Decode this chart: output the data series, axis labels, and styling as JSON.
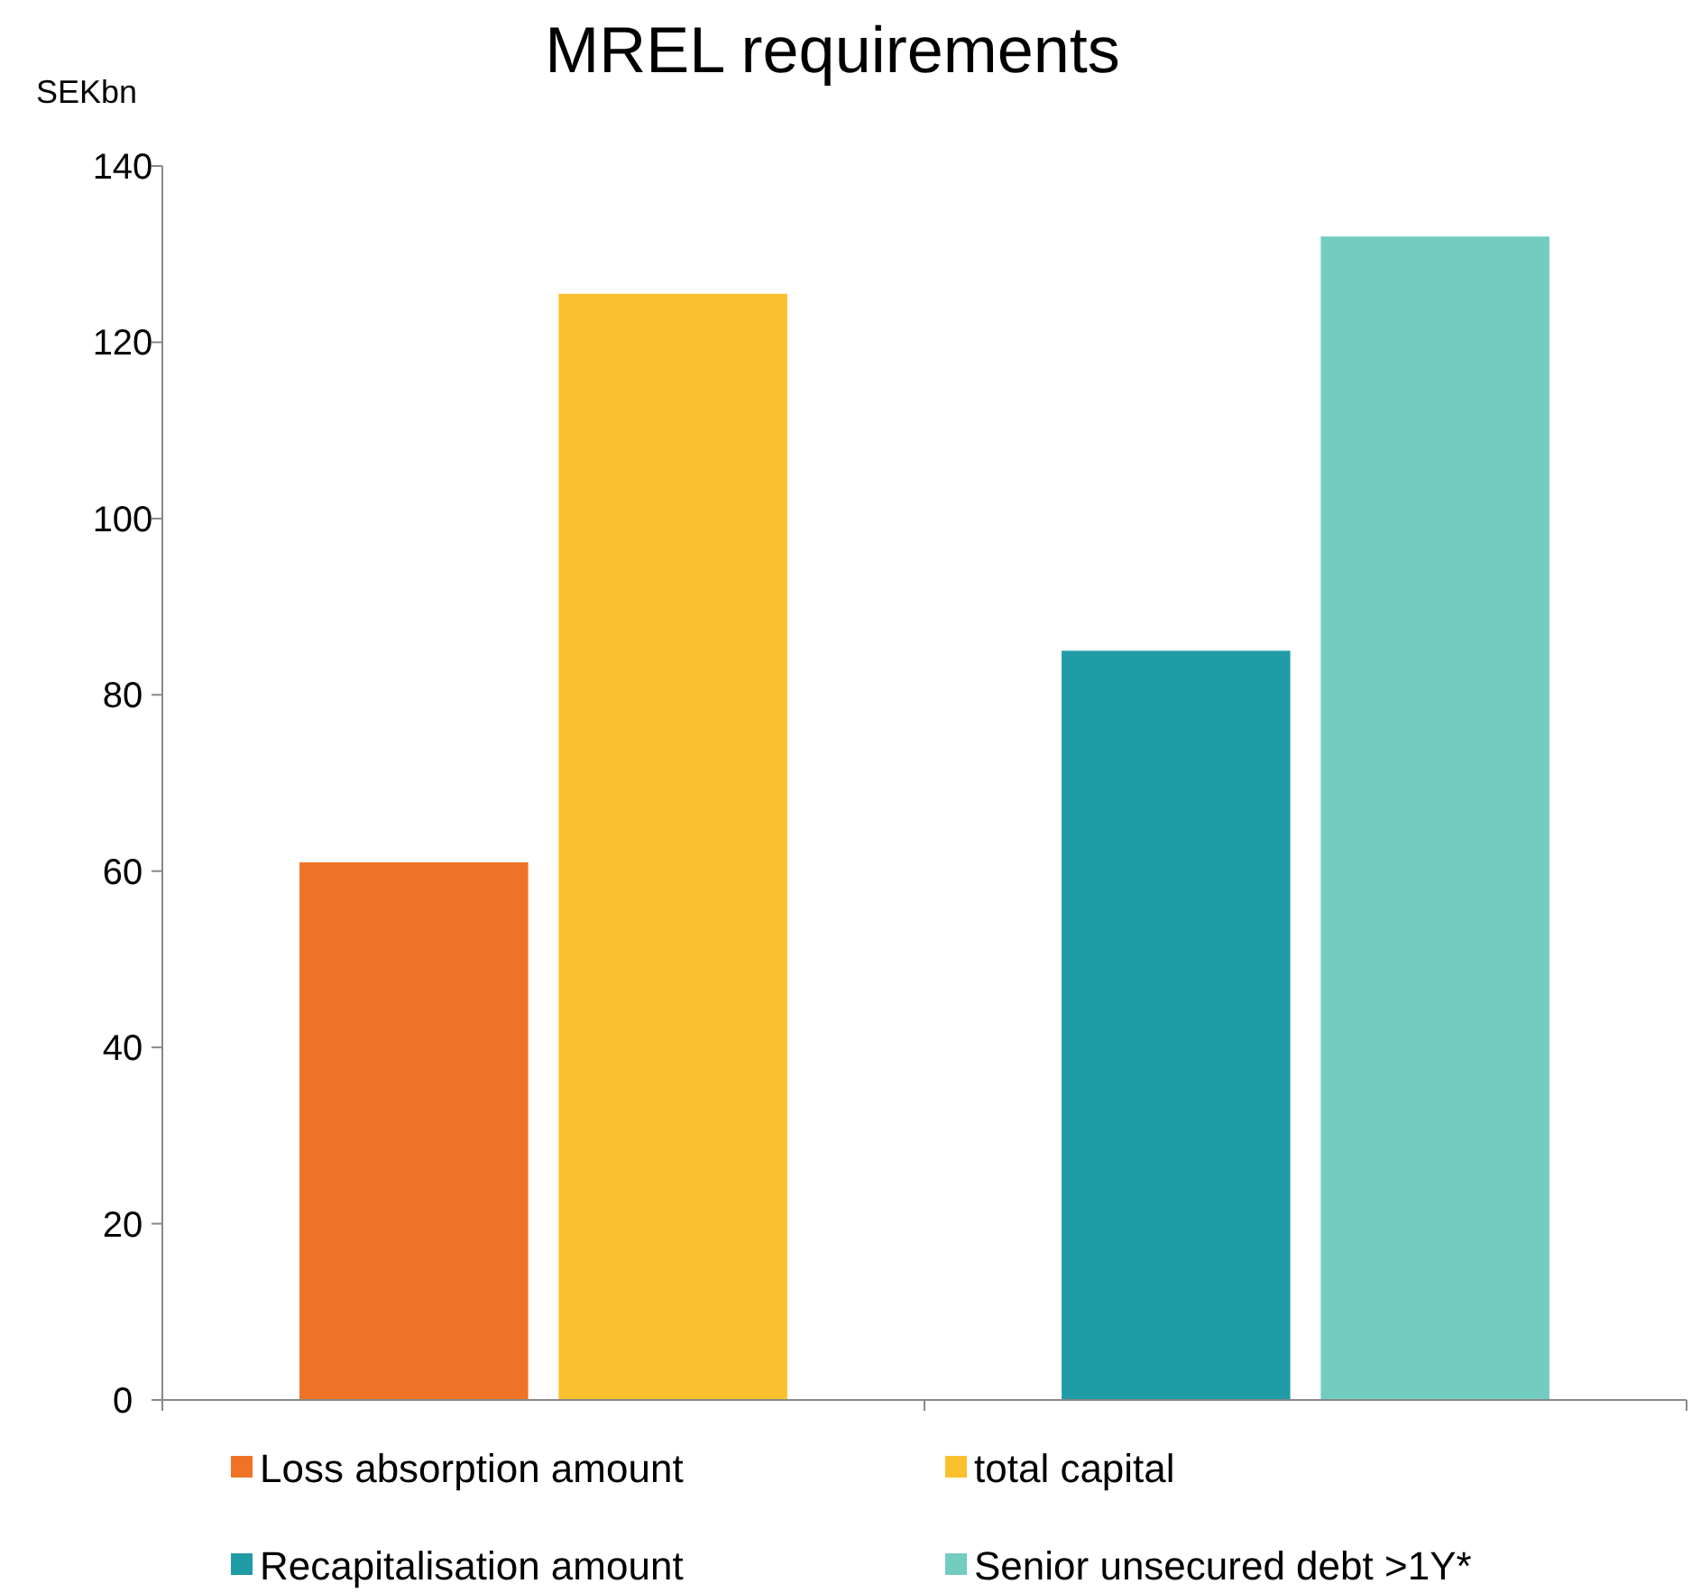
{
  "chart_data": {
    "type": "bar",
    "title": "MREL requirements",
    "ylabel": "SEKbn",
    "categories": [
      null,
      null
    ],
    "series": [
      {
        "name": "Loss absorption amount",
        "color": "#ee7326",
        "values": [
          61,
          null
        ]
      },
      {
        "name": "total capital",
        "color": "#fbc02d",
        "values": [
          125.5,
          null
        ]
      },
      {
        "name": "Recapitalisation amount",
        "color": "#1f9ca6",
        "values": [
          null,
          85
        ]
      },
      {
        "name": "Senior unsecured debt >1Y*",
        "color": "#72cdc0",
        "values": [
          null,
          132
        ]
      }
    ],
    "ylim": [
      0,
      140
    ],
    "yticks": [
      0,
      20,
      40,
      60,
      80,
      100,
      120,
      140
    ],
    "legend": "bottom"
  }
}
